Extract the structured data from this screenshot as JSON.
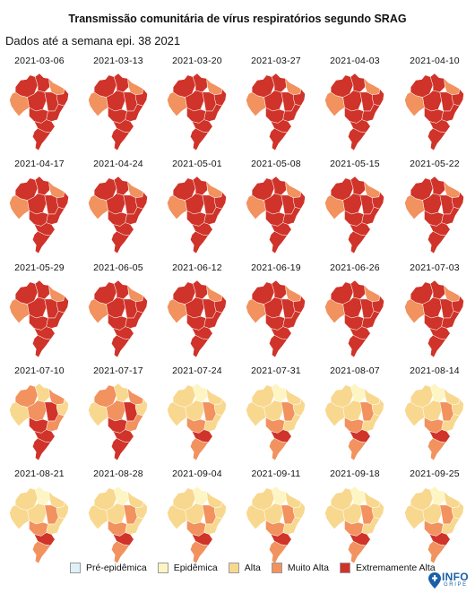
{
  "title": "Transmissão comunitária de vírus respiratórios segundo SRAG",
  "subtitle": "Dados até a semana epi. 38 2021",
  "legend": {
    "items": [
      {
        "label": "Pré-epidêmica",
        "color": "#dff1f6"
      },
      {
        "label": "Epidêmica",
        "color": "#fdf5c3"
      },
      {
        "label": "Alta",
        "color": "#f8d88f"
      },
      {
        "label": "Muito Alta",
        "color": "#f1925f"
      },
      {
        "label": "Extremamente Alta",
        "color": "#cf3329"
      }
    ]
  },
  "logo": {
    "word": "INFO",
    "sub": "GRIPE"
  },
  "maps": [
    {
      "date": "2021-03-06",
      "dominant": "extremamente_alta"
    },
    {
      "date": "2021-03-13",
      "dominant": "extremamente_alta"
    },
    {
      "date": "2021-03-20",
      "dominant": "extremamente_alta"
    },
    {
      "date": "2021-03-27",
      "dominant": "extremamente_alta"
    },
    {
      "date": "2021-04-03",
      "dominant": "extremamente_alta"
    },
    {
      "date": "2021-04-10",
      "dominant": "extremamente_alta"
    },
    {
      "date": "2021-04-17",
      "dominant": "extremamente_alta"
    },
    {
      "date": "2021-04-24",
      "dominant": "extremamente_alta"
    },
    {
      "date": "2021-05-01",
      "dominant": "extremamente_alta"
    },
    {
      "date": "2021-05-08",
      "dominant": "extremamente_alta"
    },
    {
      "date": "2021-05-15",
      "dominant": "extremamente_alta"
    },
    {
      "date": "2021-05-22",
      "dominant": "extremamente_alta"
    },
    {
      "date": "2021-05-29",
      "dominant": "extremamente_alta"
    },
    {
      "date": "2021-06-05",
      "dominant": "extremamente_alta"
    },
    {
      "date": "2021-06-12",
      "dominant": "extremamente_alta"
    },
    {
      "date": "2021-06-19",
      "dominant": "extremamente_alta"
    },
    {
      "date": "2021-06-26",
      "dominant": "extremamente_alta"
    },
    {
      "date": "2021-07-03",
      "dominant": "extremamente_alta"
    },
    {
      "date": "2021-07-10",
      "dominant": "muito_alta"
    },
    {
      "date": "2021-07-17",
      "dominant": "muito_alta"
    },
    {
      "date": "2021-07-24",
      "dominant": "alta"
    },
    {
      "date": "2021-07-31",
      "dominant": "alta"
    },
    {
      "date": "2021-08-07",
      "dominant": "alta"
    },
    {
      "date": "2021-08-14",
      "dominant": "alta"
    },
    {
      "date": "2021-08-21",
      "dominant": "alta"
    },
    {
      "date": "2021-08-28",
      "dominant": "alta"
    },
    {
      "date": "2021-09-04",
      "dominant": "alta"
    },
    {
      "date": "2021-09-11",
      "dominant": "alta"
    },
    {
      "date": "2021-09-18",
      "dominant": "alta"
    },
    {
      "date": "2021-09-25",
      "dominant": "alta"
    }
  ]
}
